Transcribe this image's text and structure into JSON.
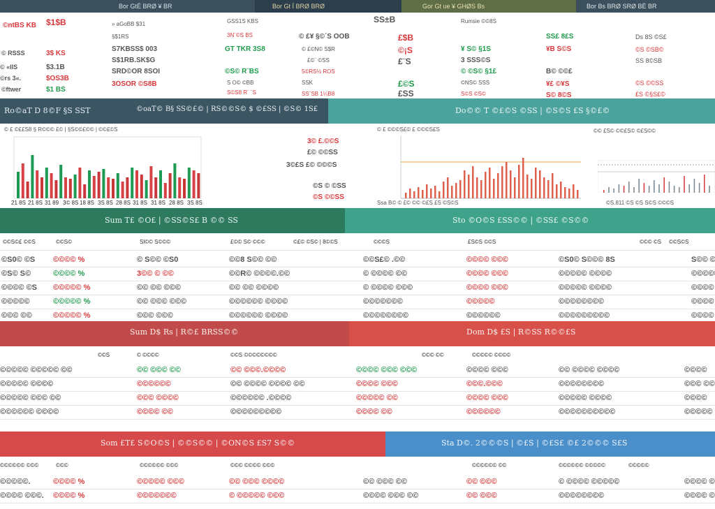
{
  "top_bar": {
    "items": [
      "Bor GtÈ BRØ ¥ BR",
      "Bor Gt Í BRØ BRØ",
      "Gor Gt ue ¥ GHØS Bs",
      "Bor Bs BRØ SRØ BÈ BR"
    ],
    "colors": [
      "#3a5566",
      "#2d4050",
      "#5a6b4a",
      "#3a4a58"
    ]
  },
  "ticker_block": {
    "col1": [
      "©ntBS KB",
      "© RSSS",
      "© «IIS",
      "©rs 3«.",
      "©ftwer"
    ],
    "col1b": [
      "$1$B",
      "3$ KS",
      "$3.1B",
      "$OS3B",
      "$1 BS"
    ],
    "col2": [
      "» aGoBB $31",
      "§$1RS",
      "S7KBSS$ 003",
      "S$1RB.SK$G",
      "SRD©OR 8SOI",
      "3OSOR ©S8B"
    ],
    "col3": [
      "GSS1S KBS",
      "3N¨©S BS",
      "GT TKR 3S8",
      "©S© R¨BS",
      "S O© ©BB",
      "S©S8 R¨ ¨S"
    ],
    "col4": [
      "© £¥ §©´S OOB",
      "© £©N© S$R",
      "£©¨ ©SS",
      "5©RS½ ROS",
      "SSK",
      "SS¨SB 1¼B8"
    ],
    "col5": [
      "SS±B",
      "£$B",
      "©¡S",
      "£¨S",
      "£©S",
      "£SS"
    ],
    "col6": [
      "Rumsie ©©8S",
      "¥ S© §1S",
      "3 SSS©S",
      "© ©S© §1£",
      "©NS© SSS",
      "S©S ©S©"
    ],
    "col7": [
      "SS£ 8£S",
      "¥B S©S",
      "B© ©©£",
      "¥£ ©¥S",
      "S© 8©S"
    ],
    "col8": [
      "Ds 8S ©S£",
      "©S ©SB©",
      "SS 8©SB",
      "©S ©©SS",
      "£S ©§S£©"
    ]
  },
  "section_bars": [
    {
      "left": "Ro©aT D 8©F   §S SST",
      "mid": "©oaT© B§ SS©£© | RS©©S© $ ©£SS | ©S© 1S£",
      "right": "Do©© T ©£©S ©SS | ©S©S £S §©£©",
      "lc": "#3b5563",
      "rc": "#4ca39d"
    },
    {
      "left": "Sum T£ ©O£ | ©SS©S£ B ©© SS",
      "right": "Sto ©O©S £SS©© | ©SS£ ©S©©",
      "lc": "#2d7a5f",
      "rc": "#3ea38a"
    },
    {
      "left": "Sum D$ Rs | R©£ BRSS©©",
      "right": "Dom D$ £S | R©SS R©©£S",
      "lc": "#c14b4a",
      "rc": "#d8504a"
    },
    {
      "left": "Som £T£ S©O©S | ©©S©© | ©ON©S £S7 S©©",
      "right": "Sta D©. 2©©©S | ©£S | ©£S£ ©£ 2©©© S£S",
      "lc": "#d74a4c",
      "rc": "#4a8fca"
    }
  ],
  "chart_a": {
    "legend": [
      "© £ ©££S8 § R©©© £© | §S©©£©© | ©©£©S"
    ],
    "ticks": [
      "21 8S",
      "21 8S",
      "31 89",
      "3© 8S",
      "18 8S",
      "3S 8S",
      "28 8S",
      "31 8S",
      "31 8S",
      "28 8S",
      "3S 8S"
    ]
  },
  "chart_a_side": [
    "3© £.©©S",
    "£© ©©SS",
    "3©£S £© ©©©S",
    "©S © ©SS",
    "©S ©©SS"
  ],
  "chart_b": {
    "legend": "© £ ©©©S£© £ ©©©S£S",
    "footer": "Ssa B© © £© ©© ©£S £S ©S©S"
  },
  "chart_c": {
    "legend": "©© £S© ©©£S© ©£S©©",
    "footer": "©S.811  ©S  ©S S©S ©©©S"
  },
  "table1": {
    "headers": [
      "©©S©£ ©©S",
      "©©S©",
      "Sl©© S©©©",
      "£©© S© ©©©",
      "©£© ©S© | 8©©S",
      "©©©S",
      "£S©S ©©S",
      "©©© ©S",
      "©©S©S"
    ],
    "rows": [
      [
        "©S0© ©S",
        "©©©© %",
        "© S©© ©S0",
        "©©8 S©© ©©",
        "©©S£© .©©",
        "©©©© ©©©",
        "©S0© S©©© 8S",
        "S©© ©"
      ],
      [
        "©S© S©",
        "©©©© %",
        "3©© © ©©",
        "©©R© ©©©©.©©",
        "© ©©©© ©©",
        "©©©© ©©©",
        "©©©©© ©©©©",
        "©©©©©"
      ],
      [
        "©©©© ©S",
        "©©©©© %",
        "©© ©© ©©©",
        "©© ©© ©©©©",
        "© ©©©© ©©©",
        "©©©© ©©©",
        "©©©©© ©©©©",
        "©©©© ©"
      ],
      [
        "©©©©©",
        "©©©©© %",
        "©© ©©© ©©©",
        "©©©©©© ©©©©",
        "©©©©©©©",
        "©©©©©",
        "©©©©©©©©",
        "©©©©"
      ],
      [
        "©©© ©©",
        "©©©©© %",
        "©©© ©©©",
        "©©©©©© ©©©©",
        "©©©©©©©©",
        "©©©©©©",
        "©©©©©©©©©",
        "©©©©"
      ]
    ]
  },
  "table2": {
    "headers": [
      "©©S",
      "© ©©©©",
      "©©S ©©©©©©©©",
      "©©© ©©",
      "©©©©© ©©©©"
    ],
    "rows": [
      [
        "©©©©© ©©©©© ©©",
        "©© ©©© ©©",
        "©© ©©©.©©©©",
        "©©©© ©©© ©©©",
        "©©©© ©©©",
        "©© ©©©© ©©©©",
        "©©©©"
      ],
      [
        "©©©©© ©©©©",
        "©©©©©©",
        "©© ©©©© ©©©© ©©",
        "©©©© ©©©",
        "©©©.©©©",
        "©©©©©©©©",
        "©©© ©©"
      ],
      [
        "©©©©© ©©© ©©",
        "©©© ©©©©",
        "©©©©©© .©©©©",
        "©©©©© ©©",
        "©©©© ©©©",
        "©©©©© ©©©©",
        "©©©©"
      ],
      [
        "©©©©©© ©©©©",
        "©©©© ©©",
        "©©©©©©©©©",
        "©©©© ©©",
        "©©©©©©",
        "©©©©©©©©©©",
        "©©©©©"
      ]
    ]
  },
  "table3": {
    "headers": [
      "©©©©©© ©©©",
      "©©©",
      "©©©©©© ©©©",
      "©©© ©©©© ©©©",
      "©©©©©© ©©",
      "©©©©©© ©©©©©",
      "©©©©©"
    ],
    "rows": [
      [
        "©©©©©.",
        "©©©© %",
        "©©©©© ©©©",
        "©© ©©© ©©©©",
        "©© ©©© ©©",
        "©© ©©©",
        "© ©©©© ©©©©©",
        "©©©© ©©©"
      ],
      [
        "©©©© ©©©.",
        "©©©© %",
        "©©©©©©©",
        "© ©©©©© ©©©",
        "©©©© ©©© ©©",
        "©© ©©©",
        "©©©©©©©©",
        "©©©© ©©©"
      ]
    ]
  }
}
